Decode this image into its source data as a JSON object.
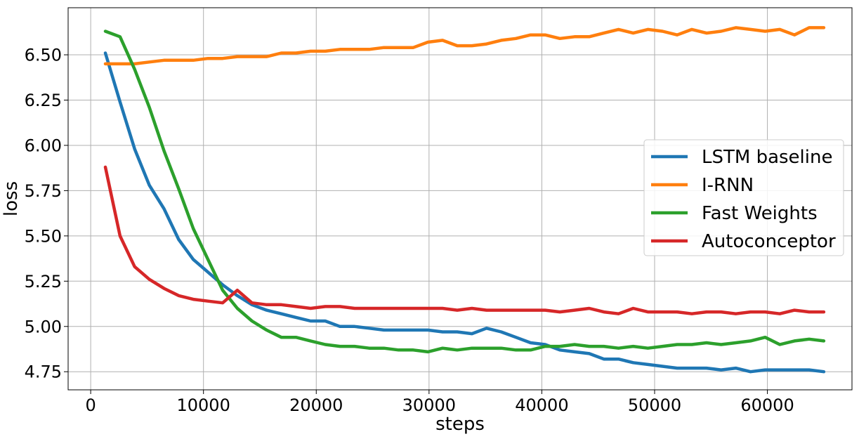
{
  "chart_data": {
    "type": "line",
    "title": "",
    "xlabel": "steps",
    "ylabel": "loss",
    "xlim": [
      -2000,
      67500
    ],
    "ylim": [
      4.65,
      6.76
    ],
    "xticks": [
      0,
      10000,
      20000,
      30000,
      40000,
      50000,
      60000
    ],
    "yticks": [
      4.75,
      5.0,
      5.25,
      5.5,
      5.75,
      6.0,
      6.25,
      6.5
    ],
    "xtick_labels": [
      "0",
      "10000",
      "20000",
      "30000",
      "40000",
      "50000",
      "60000"
    ],
    "ytick_labels": [
      "4.75",
      "5.00",
      "5.25",
      "5.50",
      "5.75",
      "6.00",
      "6.25",
      "6.50"
    ],
    "grid": true,
    "legend_position": "center-right",
    "x": [
      1300,
      2600,
      3900,
      5200,
      6500,
      7800,
      9100,
      10400,
      11700,
      13000,
      14300,
      15600,
      16900,
      18200,
      19500,
      20800,
      22100,
      23400,
      24700,
      26000,
      27300,
      28600,
      29900,
      31200,
      32500,
      33800,
      35100,
      36400,
      37700,
      39000,
      40300,
      41600,
      42900,
      44200,
      45500,
      46800,
      48100,
      49400,
      50700,
      52000,
      53300,
      54600,
      55900,
      57200,
      58500,
      59800,
      61100,
      62400,
      63700,
      65000
    ],
    "series": [
      {
        "name": "LSTM baseline",
        "color": "#1f77b4",
        "values": [
          6.51,
          6.24,
          5.98,
          5.78,
          5.65,
          5.48,
          5.37,
          5.3,
          5.23,
          5.17,
          5.12,
          5.09,
          5.07,
          5.05,
          5.03,
          5.03,
          5.0,
          5.0,
          4.99,
          4.98,
          4.98,
          4.98,
          4.98,
          4.97,
          4.97,
          4.96,
          4.99,
          4.97,
          4.94,
          4.91,
          4.9,
          4.87,
          4.86,
          4.85,
          4.82,
          4.82,
          4.8,
          4.79,
          4.78,
          4.77,
          4.77,
          4.77,
          4.76,
          4.77,
          4.75,
          4.76,
          4.76,
          4.76,
          4.76,
          4.75
        ]
      },
      {
        "name": "I-RNN",
        "color": "#ff7f0e",
        "values": [
          6.45,
          6.45,
          6.45,
          6.46,
          6.47,
          6.47,
          6.47,
          6.48,
          6.48,
          6.49,
          6.49,
          6.49,
          6.51,
          6.51,
          6.52,
          6.52,
          6.53,
          6.53,
          6.53,
          6.54,
          6.54,
          6.54,
          6.57,
          6.58,
          6.55,
          6.55,
          6.56,
          6.58,
          6.59,
          6.61,
          6.61,
          6.59,
          6.6,
          6.6,
          6.62,
          6.64,
          6.62,
          6.64,
          6.63,
          6.61,
          6.64,
          6.62,
          6.63,
          6.65,
          6.64,
          6.63,
          6.64,
          6.61,
          6.65,
          6.65
        ]
      },
      {
        "name": "Fast Weights",
        "color": "#2ca02c",
        "values": [
          6.63,
          6.6,
          6.42,
          6.21,
          5.97,
          5.76,
          5.54,
          5.37,
          5.2,
          5.1,
          5.03,
          4.98,
          4.94,
          4.94,
          4.92,
          4.9,
          4.89,
          4.89,
          4.88,
          4.88,
          4.87,
          4.87,
          4.86,
          4.88,
          4.87,
          4.88,
          4.88,
          4.88,
          4.87,
          4.87,
          4.89,
          4.89,
          4.9,
          4.89,
          4.89,
          4.88,
          4.89,
          4.88,
          4.89,
          4.9,
          4.9,
          4.91,
          4.9,
          4.91,
          4.92,
          4.94,
          4.9,
          4.92,
          4.93,
          4.92
        ]
      },
      {
        "name": "Autoconceptor",
        "color": "#d62728",
        "values": [
          5.88,
          5.5,
          5.33,
          5.26,
          5.21,
          5.17,
          5.15,
          5.14,
          5.13,
          5.2,
          5.13,
          5.12,
          5.12,
          5.11,
          5.1,
          5.11,
          5.11,
          5.1,
          5.1,
          5.1,
          5.1,
          5.1,
          5.1,
          5.1,
          5.09,
          5.1,
          5.09,
          5.09,
          5.09,
          5.09,
          5.09,
          5.08,
          5.09,
          5.1,
          5.08,
          5.07,
          5.1,
          5.08,
          5.08,
          5.08,
          5.07,
          5.08,
          5.08,
          5.07,
          5.08,
          5.08,
          5.07,
          5.09,
          5.08,
          5.08
        ]
      }
    ]
  }
}
